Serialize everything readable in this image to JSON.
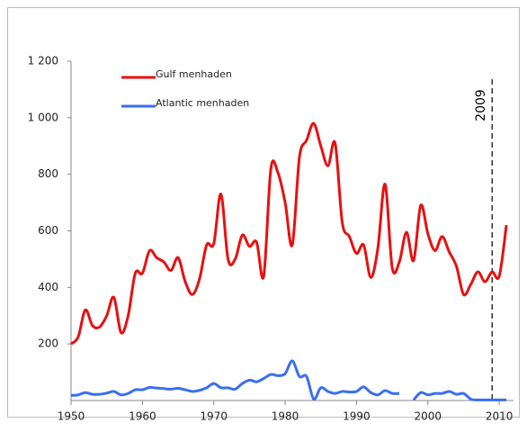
{
  "chart_data": {
    "type": "line",
    "x": [
      1950,
      1951,
      1952,
      1953,
      1954,
      1955,
      1956,
      1957,
      1958,
      1959,
      1960,
      1961,
      1962,
      1963,
      1964,
      1965,
      1966,
      1967,
      1968,
      1969,
      1970,
      1971,
      1972,
      1973,
      1974,
      1975,
      1976,
      1977,
      1978,
      1979,
      1980,
      1981,
      1982,
      1983,
      1984,
      1985,
      1986,
      1987,
      1988,
      1989,
      1990,
      1991,
      1992,
      1993,
      1994,
      1995,
      1996,
      1997,
      1998,
      1999,
      2000,
      2001,
      2002,
      2003,
      2004,
      2005,
      2006,
      2007,
      2008,
      2009,
      2010,
      2011
    ],
    "series": [
      {
        "name": "Gulf menhaden",
        "color": "#e81010",
        "values": [
          200,
          225,
          320,
          265,
          260,
          300,
          365,
          240,
          300,
          450,
          450,
          530,
          505,
          490,
          460,
          505,
          420,
          375,
          430,
          550,
          555,
          730,
          500,
          500,
          585,
          545,
          560,
          440,
          820,
          805,
          700,
          550,
          860,
          920,
          980,
          900,
          830,
          910,
          630,
          580,
          520,
          550,
          435,
          540,
          765,
          470,
          490,
          595,
          495,
          690,
          590,
          530,
          580,
          525,
          475,
          375,
          410,
          455,
          420,
          455,
          440,
          620
        ]
      },
      {
        "name": "Atlantic menhaden",
        "color": "#3a6ff0",
        "values": [
          18,
          20,
          28,
          22,
          22,
          26,
          32,
          20,
          25,
          38,
          38,
          46,
          44,
          42,
          40,
          43,
          38,
          32,
          36,
          45,
          60,
          45,
          45,
          40,
          60,
          72,
          66,
          78,
          92,
          88,
          95,
          140,
          85,
          85,
          5,
          45,
          32,
          25,
          32,
          30,
          32,
          48,
          28,
          20,
          35,
          25,
          25,
          null,
          2,
          28,
          20,
          25,
          25,
          32,
          22,
          25,
          5,
          2,
          2,
          2,
          2,
          2
        ]
      }
    ],
    "xlim": [
      1950,
      2012
    ],
    "xticks": [
      1950,
      1960,
      1970,
      1980,
      1990,
      2000,
      2010
    ],
    "ylim": [
      0,
      1200
    ],
    "yticks": [
      200,
      400,
      600,
      800,
      {
        "value": 1000,
        "label": "1 000"
      },
      {
        "value": 1200,
        "label": "1 200"
      }
    ],
    "legend": "upper left",
    "annotations": [
      {
        "label": "2009",
        "x": 2009
      }
    ]
  }
}
